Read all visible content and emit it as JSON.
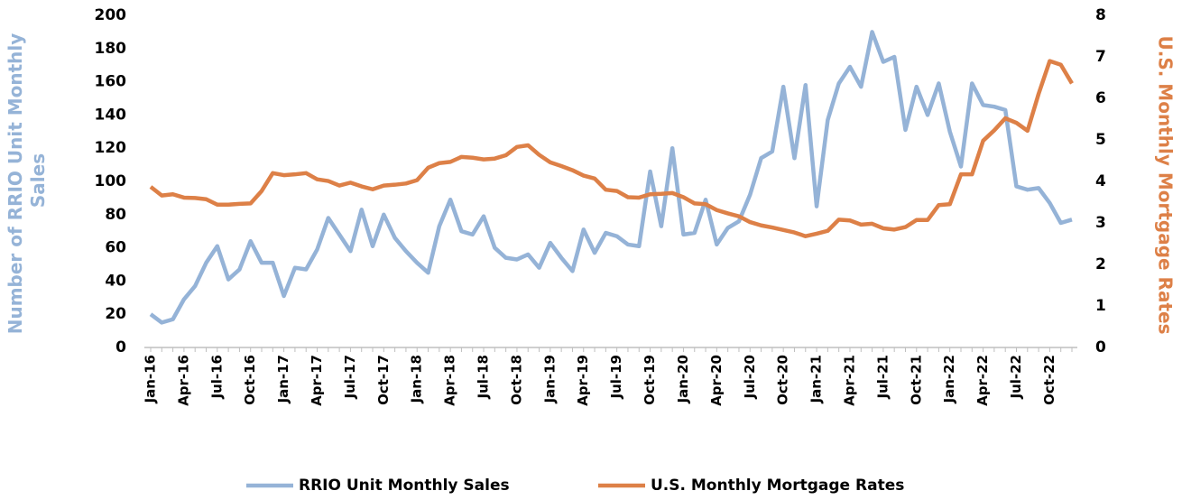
{
  "chart_data": {
    "type": "line",
    "ylabel": [
      "Number of RRIO Unit Monthly",
      "Sales"
    ],
    "y2label": "U.S. Monthly Mortgage Rates",
    "categories": [
      "Jan-16",
      null,
      null,
      "Apr-16",
      null,
      null,
      "Jul-16",
      null,
      null,
      "Oct-16",
      null,
      null,
      "Jan-17",
      null,
      null,
      "Apr-17",
      null,
      null,
      "Jul-17",
      null,
      null,
      "Oct-17",
      null,
      null,
      "Jan-18",
      null,
      null,
      "Apr-18",
      null,
      null,
      "Jul-18",
      null,
      null,
      "Oct-18",
      null,
      null,
      "Jan-19",
      null,
      null,
      "Apr-19",
      null,
      null,
      "Jul-19",
      null,
      null,
      "Oct-19",
      null,
      null,
      "Jan-20",
      null,
      null,
      "Apr-20",
      null,
      null,
      "Jul-20",
      null,
      null,
      "Oct-20",
      null,
      null,
      "Jan-21",
      null,
      null,
      "Apr-21",
      null,
      null,
      "Jul-21",
      null,
      null,
      "Oct-21",
      null,
      null,
      "Jan-22",
      null,
      null,
      "Apr-22",
      null,
      null,
      "Jul-22",
      null,
      null,
      "Oct-22",
      null,
      null
    ],
    "series": [
      {
        "name": "RRIO Unit Monthly Sales",
        "color": "#95b3d7",
        "axis": "y",
        "values": [
          20,
          15,
          17,
          29,
          37,
          51,
          61,
          41,
          47,
          64,
          51,
          51,
          31,
          48,
          47,
          59,
          78,
          68,
          58,
          83,
          61,
          80,
          66,
          58,
          51,
          45,
          73,
          89,
          70,
          68,
          79,
          60,
          54,
          53,
          56,
          48,
          63,
          54,
          46,
          71,
          57,
          69,
          67,
          62,
          61,
          106,
          73,
          120,
          68,
          69,
          89,
          62,
          72,
          76,
          92,
          114,
          118,
          157,
          114,
          158,
          85,
          137,
          159,
          169,
          157,
          190,
          172,
          175,
          131,
          157,
          140,
          159,
          130,
          109,
          159,
          146,
          145,
          143,
          97,
          95,
          96,
          87,
          75,
          77
        ]
      },
      {
        "name": "U.S. Monthly Mortgage Rates",
        "color": "#dd8047",
        "axis": "y2",
        "values": [
          3.87,
          3.66,
          3.69,
          3.61,
          3.6,
          3.57,
          3.44,
          3.44,
          3.46,
          3.47,
          3.77,
          4.2,
          4.15,
          4.17,
          4.2,
          4.05,
          4.01,
          3.9,
          3.97,
          3.88,
          3.81,
          3.9,
          3.92,
          3.95,
          4.03,
          4.33,
          4.44,
          4.47,
          4.59,
          4.57,
          4.53,
          4.55,
          4.63,
          4.83,
          4.87,
          4.64,
          4.46,
          4.37,
          4.27,
          4.14,
          4.07,
          3.8,
          3.77,
          3.62,
          3.61,
          3.69,
          3.7,
          3.72,
          3.62,
          3.47,
          3.45,
          3.31,
          3.23,
          3.16,
          3.02,
          2.94,
          2.89,
          2.83,
          2.77,
          2.68,
          2.74,
          2.81,
          3.08,
          3.06,
          2.96,
          2.98,
          2.87,
          2.84,
          2.9,
          3.07,
          3.07,
          3.43,
          3.45,
          4.17,
          4.17,
          4.98,
          5.23,
          5.52,
          5.41,
          5.22,
          6.11,
          6.9,
          6.81,
          6.36
        ]
      }
    ],
    "ylim": [
      0,
      200
    ],
    "yticks": [
      0,
      20,
      40,
      60,
      80,
      100,
      120,
      140,
      160,
      180,
      200
    ],
    "y2lim": [
      0,
      8
    ],
    "y2ticks": [
      0,
      1,
      2,
      3,
      4,
      5,
      6,
      7,
      8
    ],
    "legend": "bottom"
  }
}
